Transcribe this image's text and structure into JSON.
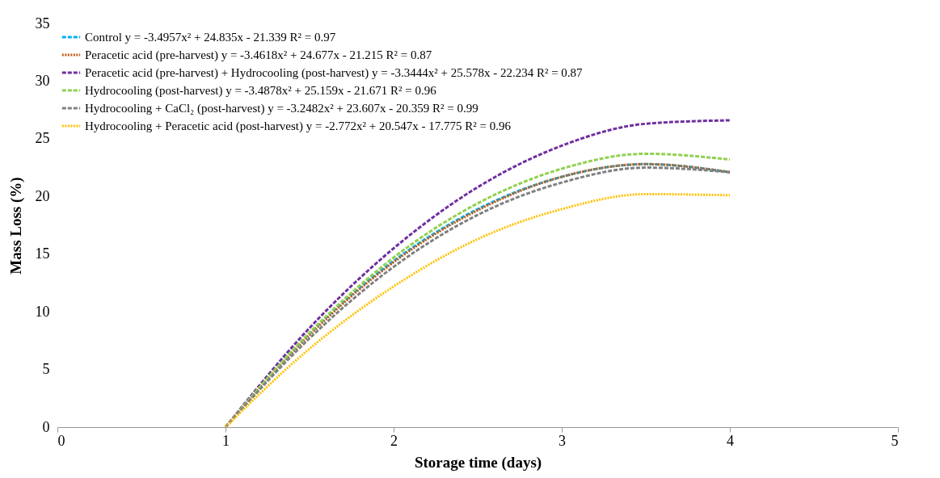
{
  "chart_data": {
    "type": "line",
    "xlabel": "Storage time (days)",
    "ylabel": "Mass Loss (%)",
    "x": [
      1,
      1.5,
      2,
      2.5,
      3,
      3.5,
      4
    ],
    "xlim": [
      0,
      5
    ],
    "xticks": [
      0,
      1,
      2,
      3,
      4,
      5
    ],
    "ylim": [
      0,
      35
    ],
    "yticks": [
      0,
      5,
      10,
      15,
      20,
      25,
      30,
      35
    ],
    "grid": false,
    "legend": "top left",
    "marker": "none",
    "series": [
      {
        "name": "Control y = -3.4957x² + 24.835x - 21.339 R² = 0.97",
        "color": "#00b0f0",
        "line_style": "dashed",
        "values": [
          0,
          8.1,
          14.4,
          18.9,
          21.7,
          22.8,
          22.1
        ]
      },
      {
        "name": "Peracetic acid (pre-harvest) y = -3.4618x² + 24.677x - 21.215 R² = 0.87",
        "color": "#c55a11",
        "line_style": "dotted",
        "values": [
          0,
          8.0,
          14.3,
          18.8,
          21.7,
          22.8,
          22.1
        ]
      },
      {
        "name": "Peracetic acid (pre-harvest) + Hydrocooling (post-harvest) y = -3.3444x² + 25.578x - 22.234  R² = 0.87",
        "color": "#7030a0",
        "line_style": "dashed",
        "values": [
          0,
          8.6,
          15.5,
          20.8,
          24.4,
          26.3,
          26.6
        ]
      },
      {
        "name": "Hydrocooling (post-harvest) y = -3.4878x² + 25.159x - 21.671 R² = 0.96",
        "color": "#92d050",
        "line_style": "dashed",
        "values": [
          0,
          8.2,
          14.7,
          19.4,
          22.4,
          23.7,
          23.2
        ]
      },
      {
        "name": "Hydrocooling + CaCl₂ (post-harvest) y = -3.2482x² + 23.607x - 20.359 R² = 0.99",
        "color": "#808080",
        "line_style": "dashed",
        "values": [
          0,
          7.7,
          13.9,
          18.4,
          21.2,
          22.5,
          22.1
        ]
      },
      {
        "name": "Hydrocooling + Peracetic acid (post-harvest) y = -2.772x² + 20.547x - 17.775  R² = 0.96",
        "color": "#ffc000",
        "line_style": "dotted",
        "values": [
          0,
          6.8,
          12.2,
          16.3,
          18.9,
          20.2,
          20.1
        ]
      }
    ]
  }
}
